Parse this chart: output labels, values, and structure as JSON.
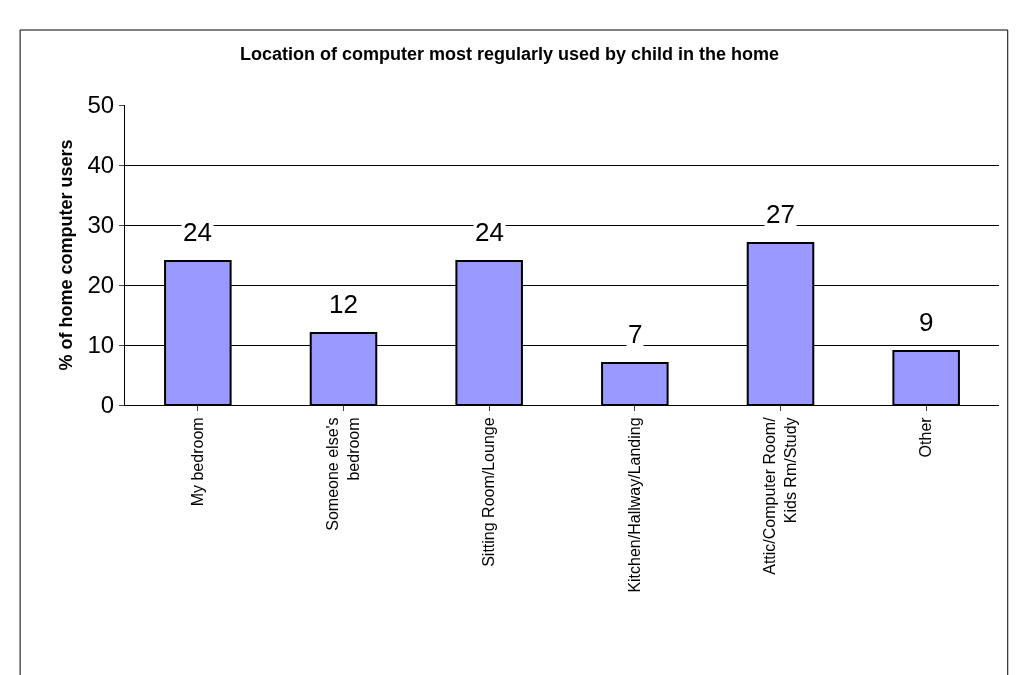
{
  "chart_data": {
    "type": "bar",
    "title": "Location of computer most regularly used by child in the home",
    "ylabel": "% of home computer users",
    "categories": [
      "My bedroom",
      "Someone else's\nbedroom",
      "Sitting Room/Lounge",
      "Kitchen/Hallway/Landing",
      "Attic/Computer Room/\nKids Rm/Study",
      "Other"
    ],
    "values": [
      24,
      12,
      24,
      7,
      27,
      9
    ],
    "color": "#9999ff",
    "ylim": [
      0,
      50
    ],
    "yticks": [
      0,
      10,
      20,
      30,
      40,
      50
    ],
    "grid": "y",
    "data_labels": true,
    "legend": false
  }
}
